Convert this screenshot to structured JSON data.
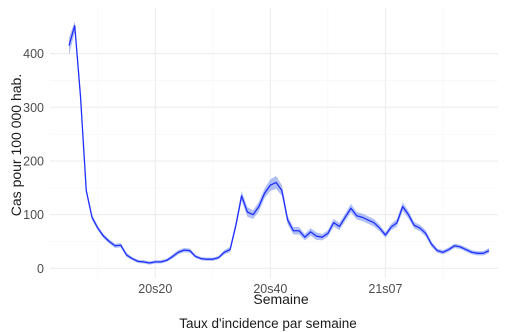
{
  "chart_data": {
    "type": "line",
    "title": "",
    "caption": "Taux d'incidence par semaine",
    "xlabel": "Semaine",
    "ylabel": "Cas pour 100 000 hab.",
    "x_tick_labels": [
      "20s20",
      "20s40",
      "21s07"
    ],
    "y_ticks": [
      0,
      100,
      200,
      300,
      400
    ],
    "ylim": [
      -18,
      485
    ],
    "grid": true,
    "line_color": "#1f2fff",
    "band_color": "#6f8cf0",
    "series": [
      {
        "values": [
          415,
          452,
          320,
          145,
          95,
          75,
          60,
          50,
          42,
          43,
          25,
          18,
          13,
          12,
          10,
          12,
          12,
          15,
          22,
          30,
          34,
          33,
          22,
          18,
          17,
          17,
          20,
          30,
          35,
          80,
          135,
          105,
          100,
          115,
          140,
          155,
          160,
          145,
          90,
          70,
          70,
          58,
          68,
          60,
          58,
          65,
          85,
          78,
          95,
          112,
          98,
          95,
          90,
          85,
          75,
          62,
          77,
          85,
          115,
          100,
          80,
          75,
          65,
          45,
          33,
          30,
          35,
          42,
          40,
          35,
          30,
          28,
          28,
          33
        ],
        "lower": [
          397,
          440,
          312,
          139,
          90,
          71,
          56,
          46,
          38,
          39,
          21,
          15,
          10,
          9,
          7,
          9,
          9,
          12,
          18,
          26,
          30,
          29,
          19,
          15,
          14,
          14,
          17,
          26,
          30,
          73,
          126,
          96,
          92,
          106,
          131,
          144,
          148,
          135,
          82,
          63,
          63,
          52,
          61,
          53,
          52,
          59,
          78,
          71,
          88,
          104,
          91,
          88,
          83,
          78,
          69,
          57,
          71,
          78,
          107,
          93,
          74,
          69,
          59,
          40,
          29,
          26,
          31,
          38,
          36,
          31,
          26,
          24,
          24,
          28
        ],
        "upper": [
          430,
          460,
          328,
          151,
          100,
          79,
          64,
          54,
          46,
          47,
          29,
          21,
          16,
          15,
          13,
          15,
          15,
          18,
          26,
          34,
          38,
          37,
          25,
          21,
          20,
          20,
          23,
          34,
          40,
          87,
          144,
          114,
          108,
          124,
          149,
          166,
          172,
          155,
          98,
          77,
          77,
          64,
          75,
          67,
          64,
          71,
          92,
          85,
          102,
          120,
          105,
          102,
          97,
          92,
          81,
          67,
          83,
          92,
          123,
          107,
          86,
          81,
          71,
          50,
          37,
          34,
          39,
          46,
          44,
          39,
          34,
          32,
          32,
          38
        ]
      }
    ]
  }
}
